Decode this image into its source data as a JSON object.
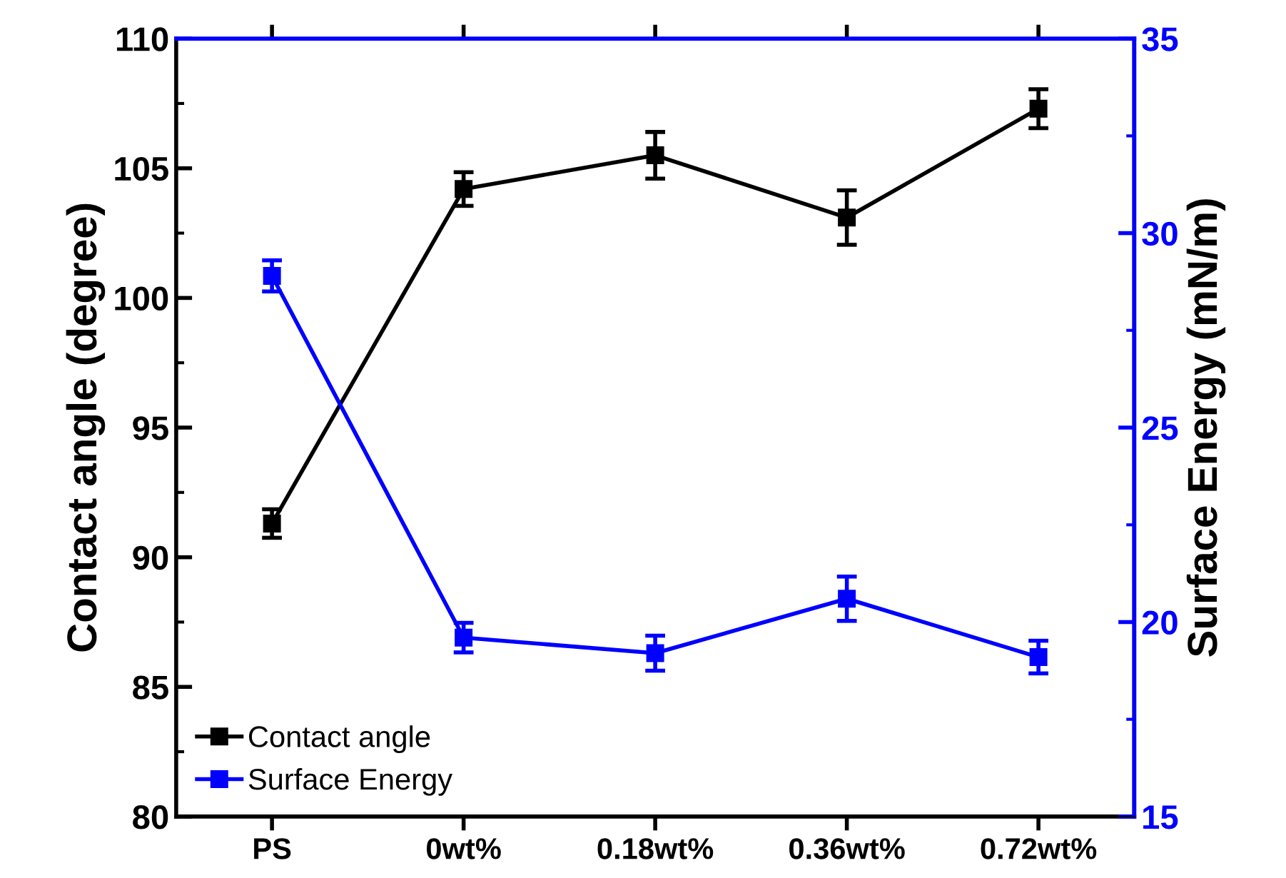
{
  "chart_data": {
    "type": "line",
    "xlabel": null,
    "ylabel": "Contact angle (degree)",
    "y2label": "Surface Energy (mN/m)",
    "categories": [
      "PS",
      "0wt%",
      "0.18wt%",
      "0.36wt%",
      "0.72wt%"
    ],
    "series": [
      {
        "name": "Contact angle",
        "color": "#000000",
        "values": [
          91.3,
          104.2,
          105.5,
          103.1,
          107.3
        ],
        "errors": [
          0.55,
          0.65,
          0.9,
          1.05,
          0.75
        ]
      },
      {
        "name": "Surface Energy",
        "color": "#0000ff",
        "axis": "y2",
        "values": [
          28.9,
          19.6,
          19.2,
          20.6,
          19.1
        ],
        "errors": [
          0.4,
          0.38,
          0.45,
          0.57,
          0.42
        ]
      }
    ],
    "ylim": [
      80,
      110
    ],
    "yticks": [
      80,
      {
        "value": 82.5,
        "label": null
      },
      85,
      {
        "value": 87.5,
        "label": null
      },
      90,
      {
        "value": 92.5,
        "label": null
      },
      95,
      {
        "value": 97.5,
        "label": null
      },
      100,
      {
        "value": 102.5,
        "label": null
      },
      105,
      {
        "value": 107.5,
        "label": null
      },
      110
    ],
    "y2lim": [
      15,
      35
    ],
    "y2ticks": [
      15,
      {
        "value": 17.5,
        "label": null
      },
      20,
      {
        "value": 22.5,
        "label": null
      },
      25,
      {
        "value": 27.5,
        "label": null
      },
      30,
      {
        "value": 32.5,
        "label": null
      },
      35
    ],
    "legend": "bottom left",
    "marker": "square",
    "line_style": "solid",
    "grid": false
  }
}
